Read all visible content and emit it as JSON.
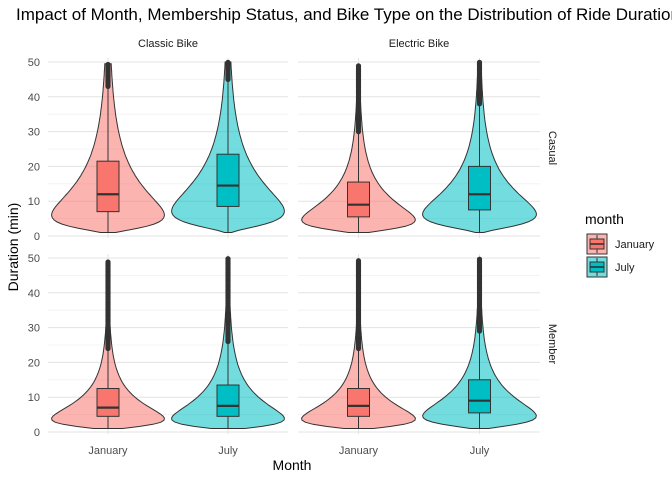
{
  "chart_data": {
    "type": "violin",
    "title": "Impact of Month, Membership Status, and Bike Type on the Distribution of Ride Durations",
    "xlabel": "Month",
    "ylabel": "Duration (min)",
    "ylim": [
      0,
      50
    ],
    "y_ticks": [
      0,
      10,
      20,
      30,
      40,
      50
    ],
    "categories": [
      "January",
      "July"
    ],
    "column_facets": [
      "Classic Bike",
      "Electric Bike"
    ],
    "row_facets": [
      "Casual",
      "Member"
    ],
    "grid": true,
    "legend": {
      "title": "month",
      "position": "right",
      "entries": [
        {
          "label": "January",
          "color": "#F8766D"
        },
        {
          "label": "July",
          "color": "#00BFC4"
        }
      ]
    },
    "panels": [
      {
        "bike": "Classic Bike",
        "member": "Casual",
        "groups": [
          {
            "month": "January",
            "q1": 7,
            "median": 12,
            "q3": 21.5,
            "whisker_low": 1,
            "whisker_high": 43,
            "outlier_max": 49.5
          },
          {
            "month": "July",
            "q1": 8.5,
            "median": 14.5,
            "q3": 23.5,
            "whisker_low": 1,
            "whisker_high": 45,
            "outlier_max": 50
          }
        ]
      },
      {
        "bike": "Electric Bike",
        "member": "Casual",
        "groups": [
          {
            "month": "January",
            "q1": 5.5,
            "median": 9,
            "q3": 15.5,
            "whisker_low": 1,
            "whisker_high": 30,
            "outlier_max": 49
          },
          {
            "month": "July",
            "q1": 7.5,
            "median": 12,
            "q3": 20,
            "whisker_low": 1,
            "whisker_high": 38,
            "outlier_max": 50
          }
        ]
      },
      {
        "bike": "Classic Bike",
        "member": "Member",
        "groups": [
          {
            "month": "January",
            "q1": 4.5,
            "median": 7,
            "q3": 12.5,
            "whisker_low": 1,
            "whisker_high": 24,
            "outlier_max": 49
          },
          {
            "month": "July",
            "q1": 4.5,
            "median": 7.5,
            "q3": 13.5,
            "whisker_low": 1,
            "whisker_high": 26,
            "outlier_max": 50
          }
        ]
      },
      {
        "bike": "Electric Bike",
        "member": "Member",
        "groups": [
          {
            "month": "January",
            "q1": 4.5,
            "median": 7.5,
            "q3": 12.5,
            "whisker_low": 1,
            "whisker_high": 24,
            "outlier_max": 49.5
          },
          {
            "month": "July",
            "q1": 5.5,
            "median": 9,
            "q3": 15,
            "whisker_low": 1,
            "whisker_high": 29,
            "outlier_max": 50
          }
        ]
      }
    ]
  }
}
